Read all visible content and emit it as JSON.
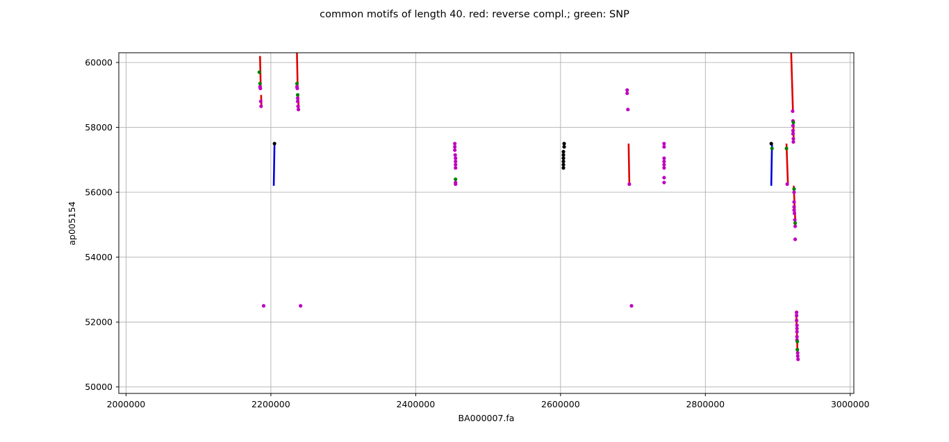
{
  "chart_data": {
    "type": "scatter",
    "title": "common motifs of length 40. red: reverse compl.; green: SNP",
    "xlabel": "BA000007.fa",
    "ylabel": "ap005154",
    "xlim": [
      1990000,
      3005000
    ],
    "ylim": [
      49800,
      60300
    ],
    "grid": true,
    "x_ticks": [
      2000000,
      2200000,
      2400000,
      2600000,
      2800000,
      3000000
    ],
    "y_ticks": [
      50000,
      52000,
      54000,
      56000,
      58000,
      60000
    ],
    "colors": {
      "reverse": "#e00000",
      "forward": "#0000e0",
      "snp": "#008000",
      "magenta": "#c000c0",
      "black": "#000000"
    },
    "segments": [
      {
        "color": "reverse",
        "x1": 2185000,
        "y1": 60200,
        "x2": 2186000,
        "y2": 59250
      },
      {
        "color": "reverse",
        "x1": 2186500,
        "y1": 59000,
        "x2": 2187000,
        "y2": 58650
      },
      {
        "color": "forward",
        "x1": 2204000,
        "y1": 56200,
        "x2": 2205000,
        "y2": 57500
      },
      {
        "color": "reverse",
        "x1": 2236000,
        "y1": 60300,
        "x2": 2237000,
        "y2": 59200
      },
      {
        "color": "reverse",
        "x1": 2237500,
        "y1": 59050,
        "x2": 2238500,
        "y2": 58500
      },
      {
        "color": "reverse",
        "x1": 2694000,
        "y1": 57500,
        "x2": 2695000,
        "y2": 56250
      },
      {
        "color": "forward",
        "x1": 2891000,
        "y1": 56200,
        "x2": 2892000,
        "y2": 57500
      },
      {
        "color": "reverse",
        "x1": 2912000,
        "y1": 57500,
        "x2": 2914000,
        "y2": 56250
      },
      {
        "color": "reverse",
        "x1": 2918500,
        "y1": 60300,
        "x2": 2921000,
        "y2": 58450
      },
      {
        "color": "reverse",
        "x1": 2921500,
        "y1": 58200,
        "x2": 2922000,
        "y2": 57550
      },
      {
        "color": "reverse",
        "x1": 2922000,
        "y1": 56200,
        "x2": 2924500,
        "y2": 54950
      },
      {
        "color": "reverse",
        "x1": 2924000,
        "y1": 54600,
        "x2": 2924500,
        "y2": 54500
      },
      {
        "color": "reverse",
        "x1": 2925500,
        "y1": 52300,
        "x2": 2927500,
        "y2": 50850
      }
    ],
    "points": [
      {
        "color": "snp",
        "x": 2184000,
        "y": 59700
      },
      {
        "color": "snp",
        "x": 2185000,
        "y": 59350
      },
      {
        "color": "magenta",
        "x": 2185000,
        "y": 59250
      },
      {
        "color": "magenta",
        "x": 2185500,
        "y": 59200
      },
      {
        "color": "magenta",
        "x": 2186000,
        "y": 58800
      },
      {
        "color": "magenta",
        "x": 2186500,
        "y": 58650
      },
      {
        "color": "magenta",
        "x": 2190000,
        "y": 52500
      },
      {
        "color": "black",
        "x": 2205000,
        "y": 57500
      },
      {
        "color": "snp",
        "x": 2236000,
        "y": 59350
      },
      {
        "color": "magenta",
        "x": 2236000,
        "y": 59250
      },
      {
        "color": "magenta",
        "x": 2236500,
        "y": 59200
      },
      {
        "color": "snp",
        "x": 2237000,
        "y": 59000
      },
      {
        "color": "magenta",
        "x": 2237000,
        "y": 58900
      },
      {
        "color": "magenta",
        "x": 2237000,
        "y": 58800
      },
      {
        "color": "magenta",
        "x": 2237500,
        "y": 58650
      },
      {
        "color": "magenta",
        "x": 2238000,
        "y": 58550
      },
      {
        "color": "magenta",
        "x": 2241000,
        "y": 52500
      },
      {
        "color": "magenta",
        "x": 2454000,
        "y": 57500
      },
      {
        "color": "magenta",
        "x": 2454000,
        "y": 57400
      },
      {
        "color": "magenta",
        "x": 2454000,
        "y": 57300
      },
      {
        "color": "magenta",
        "x": 2454500,
        "y": 57150
      },
      {
        "color": "magenta",
        "x": 2455000,
        "y": 57050
      },
      {
        "color": "magenta",
        "x": 2455000,
        "y": 56950
      },
      {
        "color": "magenta",
        "x": 2455000,
        "y": 56850
      },
      {
        "color": "magenta",
        "x": 2455000,
        "y": 56750
      },
      {
        "color": "snp",
        "x": 2455000,
        "y": 56400
      },
      {
        "color": "magenta",
        "x": 2455000,
        "y": 56300
      },
      {
        "color": "magenta",
        "x": 2455000,
        "y": 56250
      },
      {
        "color": "black",
        "x": 2605000,
        "y": 57500
      },
      {
        "color": "black",
        "x": 2605000,
        "y": 57400
      },
      {
        "color": "black",
        "x": 2604000,
        "y": 57250
      },
      {
        "color": "black",
        "x": 2604000,
        "y": 57150
      },
      {
        "color": "black",
        "x": 2604000,
        "y": 57050
      },
      {
        "color": "black",
        "x": 2604000,
        "y": 56950
      },
      {
        "color": "black",
        "x": 2604000,
        "y": 56850
      },
      {
        "color": "black",
        "x": 2604000,
        "y": 56750
      },
      {
        "color": "magenta",
        "x": 2692000,
        "y": 59150
      },
      {
        "color": "magenta",
        "x": 2692000,
        "y": 59050
      },
      {
        "color": "magenta",
        "x": 2693000,
        "y": 58550
      },
      {
        "color": "magenta",
        "x": 2695000,
        "y": 56250
      },
      {
        "color": "magenta",
        "x": 2698000,
        "y": 52500
      },
      {
        "color": "magenta",
        "x": 2743000,
        "y": 57500
      },
      {
        "color": "magenta",
        "x": 2743000,
        "y": 57400
      },
      {
        "color": "magenta",
        "x": 2743000,
        "y": 57050
      },
      {
        "color": "magenta",
        "x": 2743000,
        "y": 56950
      },
      {
        "color": "magenta",
        "x": 2743000,
        "y": 56850
      },
      {
        "color": "magenta",
        "x": 2743000,
        "y": 56750
      },
      {
        "color": "magenta",
        "x": 2743000,
        "y": 56450
      },
      {
        "color": "magenta",
        "x": 2743000,
        "y": 56300
      },
      {
        "color": "black",
        "x": 2891000,
        "y": 57500
      },
      {
        "color": "snp",
        "x": 2892000,
        "y": 57350
      },
      {
        "color": "snp",
        "x": 2912000,
        "y": 57350
      },
      {
        "color": "magenta",
        "x": 2913000,
        "y": 56250
      },
      {
        "color": "magenta",
        "x": 2920500,
        "y": 58500
      },
      {
        "color": "magenta",
        "x": 2921000,
        "y": 58200
      },
      {
        "color": "snp",
        "x": 2921500,
        "y": 58150
      },
      {
        "color": "magenta",
        "x": 2921000,
        "y": 58050
      },
      {
        "color": "magenta",
        "x": 2921000,
        "y": 57900
      },
      {
        "color": "magenta",
        "x": 2921000,
        "y": 57800
      },
      {
        "color": "magenta",
        "x": 2921500,
        "y": 57650
      },
      {
        "color": "magenta",
        "x": 2921500,
        "y": 57550
      },
      {
        "color": "snp",
        "x": 2922500,
        "y": 56100
      },
      {
        "color": "magenta",
        "x": 2922500,
        "y": 56000
      },
      {
        "color": "magenta",
        "x": 2922500,
        "y": 55700
      },
      {
        "color": "magenta",
        "x": 2922500,
        "y": 55550
      },
      {
        "color": "magenta",
        "x": 2922500,
        "y": 55450
      },
      {
        "color": "magenta",
        "x": 2923000,
        "y": 55350
      },
      {
        "color": "magenta",
        "x": 2923500,
        "y": 55150
      },
      {
        "color": "snp",
        "x": 2924000,
        "y": 55050
      },
      {
        "color": "magenta",
        "x": 2924000,
        "y": 54950
      },
      {
        "color": "magenta",
        "x": 2924000,
        "y": 54550
      },
      {
        "color": "magenta",
        "x": 2926000,
        "y": 52300
      },
      {
        "color": "magenta",
        "x": 2926000,
        "y": 52200
      },
      {
        "color": "magenta",
        "x": 2926000,
        "y": 52050
      },
      {
        "color": "magenta",
        "x": 2926500,
        "y": 51900
      },
      {
        "color": "magenta",
        "x": 2926500,
        "y": 51800
      },
      {
        "color": "magenta",
        "x": 2926500,
        "y": 51700
      },
      {
        "color": "magenta",
        "x": 2926500,
        "y": 51550
      },
      {
        "color": "magenta",
        "x": 2926500,
        "y": 51450
      },
      {
        "color": "snp",
        "x": 2927000,
        "y": 51400
      },
      {
        "color": "snp",
        "x": 2927000,
        "y": 51150
      },
      {
        "color": "magenta",
        "x": 2927500,
        "y": 51050
      },
      {
        "color": "magenta",
        "x": 2927500,
        "y": 50950
      },
      {
        "color": "magenta",
        "x": 2928000,
        "y": 50850
      }
    ]
  }
}
